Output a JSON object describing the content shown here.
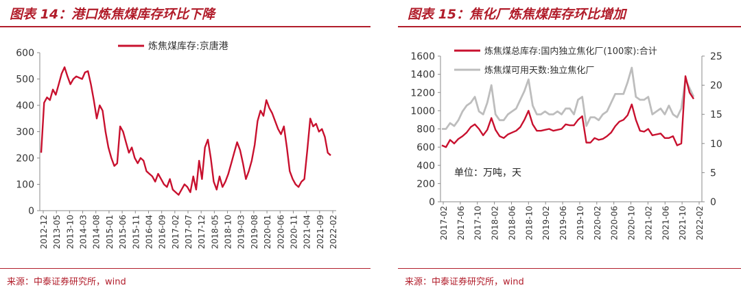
{
  "colors": {
    "accent": "#b11c2a",
    "series_red": "#c8102e",
    "series_gray": "#bdbdbd",
    "axis": "#888888"
  },
  "charts": [
    {
      "title": "图表 14：港口炼焦煤库存环比下降",
      "source": "来源：中泰证券研究所，wind"
    },
    {
      "title": "图表 15：焦化厂炼焦煤库存环比增加",
      "source": "来源：中泰证券研究所，wind"
    }
  ],
  "chart_data": [
    {
      "type": "line",
      "title": "图表 14：港口炼焦煤库存环比下降",
      "legend": [
        "炼焦煤库存:京唐港"
      ],
      "ylim": [
        0,
        600
      ],
      "yticks": [
        0,
        100,
        200,
        300,
        400,
        500,
        600
      ],
      "xlabels": [
        "2012-12",
        "2013-05",
        "2013-10",
        "2014-03",
        "2014-08",
        "2015-01",
        "2015-06",
        "2015-11",
        "2016-04",
        "2016-09",
        "2017-02",
        "2017-07",
        "2017-12",
        "2018-05",
        "2018-10",
        "2019-03",
        "2019-08",
        "2020-01",
        "2020-06",
        "2020-11",
        "2021-04",
        "2021-09",
        "2022-02"
      ],
      "series": [
        {
          "name": "炼焦煤库存:京唐港",
          "values": [
            220,
            410,
            430,
            420,
            460,
            440,
            480,
            520,
            545,
            510,
            480,
            500,
            510,
            505,
            500,
            525,
            530,
            480,
            420,
            350,
            400,
            380,
            300,
            240,
            200,
            170,
            180,
            320,
            300,
            260,
            220,
            240,
            200,
            180,
            200,
            190,
            150,
            140,
            130,
            110,
            140,
            120,
            100,
            90,
            120,
            80,
            70,
            60,
            80,
            100,
            90,
            70,
            130,
            80,
            190,
            120,
            240,
            270,
            200,
            110,
            80,
            130,
            90,
            110,
            140,
            180,
            220,
            260,
            230,
            180,
            120,
            150,
            190,
            250,
            340,
            380,
            360,
            420,
            390,
            370,
            340,
            310,
            290,
            320,
            240,
            150,
            120,
            100,
            90,
            110,
            120,
            230,
            350,
            320,
            330,
            300,
            310,
            280,
            220,
            210
          ]
        }
      ]
    },
    {
      "type": "line",
      "title": "图表 15：焦化厂炼焦煤库存环比增加",
      "legend": [
        "炼焦煤总库存:国内独立焦化厂(100家):合计",
        "炼焦煤可用天数:独立焦化厂"
      ],
      "annotation": "单位：万吨，天",
      "ylim_left": [
        0,
        1600
      ],
      "yticks_left": [
        0,
        200,
        400,
        600,
        800,
        1000,
        1200,
        1400,
        1600
      ],
      "ylim_right": [
        0,
        25
      ],
      "yticks_right": [
        0,
        5,
        10,
        15,
        20,
        25
      ],
      "xlabels": [
        "2017-02",
        "2017-06",
        "2017-10",
        "2018-02",
        "2018-06",
        "2018-10",
        "2019-02",
        "2019-06",
        "2019-10",
        "2020-02",
        "2020-06",
        "2020-10",
        "2021-02",
        "2021-06",
        "2021-10",
        "2022-02"
      ],
      "series": [
        {
          "name": "炼焦煤总库存:国内独立焦化厂(100家):合计",
          "axis": "left",
          "values": [
            620,
            600,
            680,
            640,
            690,
            720,
            760,
            820,
            850,
            800,
            730,
            790,
            920,
            790,
            720,
            700,
            740,
            760,
            780,
            820,
            900,
            1000,
            850,
            780,
            780,
            790,
            800,
            780,
            790,
            800,
            850,
            840,
            840,
            900,
            940,
            650,
            650,
            700,
            680,
            690,
            720,
            760,
            830,
            880,
            900,
            950,
            1070,
            900,
            780,
            770,
            800,
            730,
            740,
            750,
            700,
            700,
            720,
            620,
            640,
            1380,
            1200,
            1130
          ]
        },
        {
          "name": "炼焦煤可用天数:独立焦化厂",
          "axis": "right",
          "values": [
            12.5,
            12.5,
            13.5,
            13.0,
            14.0,
            15.5,
            16.5,
            17.0,
            18.0,
            15.5,
            15.0,
            17.0,
            20.0,
            15.0,
            14.0,
            14.0,
            15.0,
            15.5,
            16.0,
            17.5,
            19.0,
            21.0,
            16.5,
            15.0,
            15.0,
            15.5,
            15.0,
            15.0,
            15.5,
            15.0,
            16.0,
            16.0,
            15.0,
            17.5,
            18.0,
            13.0,
            14.5,
            14.5,
            14.0,
            15.0,
            15.5,
            17.0,
            18.5,
            18.5,
            18.5,
            20.5,
            23.0,
            18.0,
            17.5,
            17.5,
            18.0,
            15.0,
            15.5,
            16.0,
            15.0,
            16.5,
            15.0,
            14.5,
            16.0,
            21.0,
            19.5,
            18.0
          ]
        }
      ]
    }
  ]
}
